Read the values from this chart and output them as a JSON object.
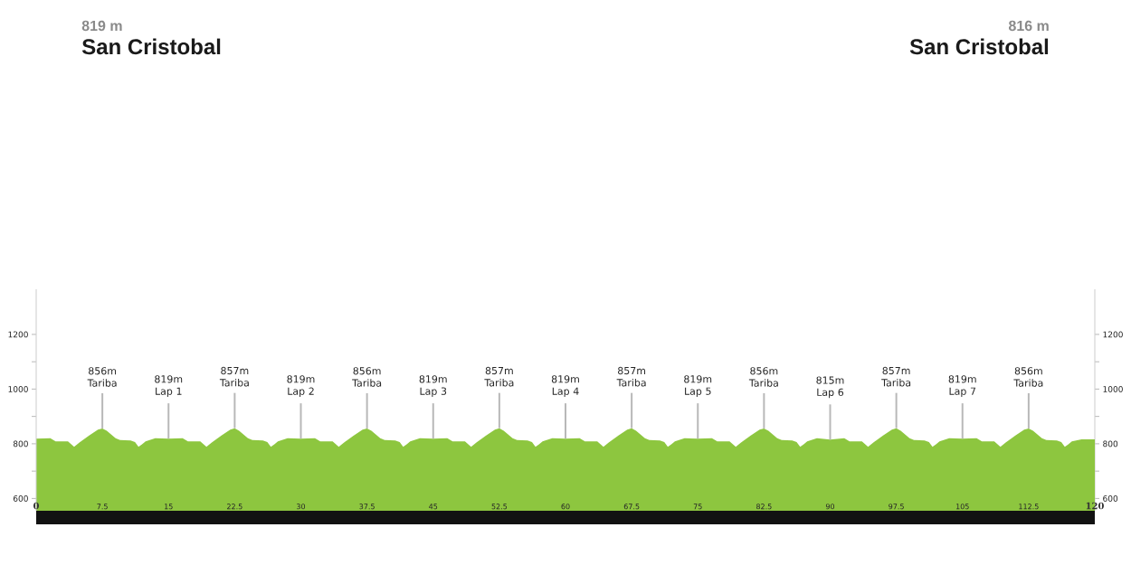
{
  "chart_data": {
    "type": "area",
    "annotations": [
      "819 m",
      "San Cristobal",
      "816 m",
      "San Cristobal",
      {
        "text": "856m Tariba",
        "x": 7.5,
        "y": 856
      },
      {
        "text": "819m Lap 1",
        "x": 15,
        "y": 819
      },
      {
        "text": "857m Tariba",
        "x": 22.5,
        "y": 857
      },
      {
        "text": "819m Lap 2",
        "x": 30,
        "y": 819
      },
      {
        "text": "856m Tariba",
        "x": 37.5,
        "y": 856
      },
      {
        "text": "819m Lap 3",
        "x": 45,
        "y": 819
      },
      {
        "text": "857m Tariba",
        "x": 52.5,
        "y": 857
      },
      {
        "text": "819m Lap 4",
        "x": 60,
        "y": 819
      },
      {
        "text": "857m Tariba",
        "x": 67.5,
        "y": 857
      },
      {
        "text": "819m Lap 5",
        "x": 75,
        "y": 819
      },
      {
        "text": "856m Tariba",
        "x": 82.5,
        "y": 856
      },
      {
        "text": "815m Lap 6",
        "x": 90,
        "y": 815
      },
      {
        "text": "857m Tariba",
        "x": 97.5,
        "y": 857
      },
      {
        "text": "819m Lap 7",
        "x": 105,
        "y": 819
      },
      {
        "text": "856m Tariba",
        "x": 112.5,
        "y": 856
      }
    ],
    "series": [
      {
        "color": "#8dc63f",
        "x": [
          0,
          1.6,
          2.2,
          3.6,
          4.3,
          4.9,
          6,
          7,
          7.5,
          8,
          9,
          9.5,
          10.7,
          11.2,
          11.6,
          12,
          12.4,
          13.5,
          15,
          16.6,
          17.2,
          18.6,
          19.3,
          19.9,
          21,
          22,
          22.5,
          23,
          24,
          24.5,
          25.7,
          26.2,
          26.6,
          27,
          27.4,
          28.5,
          30,
          31.6,
          32.2,
          33.6,
          34.3,
          34.9,
          36,
          37,
          37.5,
          38,
          39,
          39.5,
          40.7,
          41.2,
          41.6,
          42,
          42.4,
          43.5,
          45,
          46.6,
          47.2,
          48.6,
          49.3,
          49.9,
          51,
          52,
          52.5,
          53,
          54,
          54.5,
          55.7,
          56.2,
          56.6,
          57,
          57.4,
          58.5,
          60,
          61.6,
          62.2,
          63.6,
          64.3,
          64.9,
          66,
          67,
          67.5,
          68,
          69,
          69.5,
          70.7,
          71.2,
          71.6,
          72,
          72.4,
          73.5,
          75,
          76.6,
          77.2,
          78.6,
          79.3,
          79.9,
          81,
          82,
          82.5,
          83,
          84,
          84.5,
          85.7,
          86.2,
          86.6,
          87,
          87.4,
          88.5,
          90,
          91.6,
          92.2,
          93.6,
          94.3,
          94.9,
          96,
          97,
          97.5,
          98,
          99,
          99.5,
          100.7,
          101.2,
          101.6,
          102,
          102.4,
          103.5,
          105,
          106.6,
          107.2,
          108.6,
          109.3,
          109.9,
          111,
          112,
          112.5,
          113,
          114,
          114.5,
          115.7,
          116.2,
          116.6,
          117,
          117.4,
          118.5,
          120
        ],
        "values": [
          819,
          820,
          809,
          809,
          789,
          805,
          830,
          852,
          856,
          848,
          820,
          814,
          812,
          806,
          789,
          798,
          809,
          820,
          819,
          820,
          809,
          809,
          789,
          805,
          830,
          852,
          857,
          848,
          820,
          814,
          812,
          806,
          789,
          798,
          809,
          820,
          819,
          820,
          809,
          809,
          789,
          805,
          830,
          852,
          856,
          848,
          820,
          814,
          812,
          806,
          789,
          798,
          809,
          820,
          819,
          820,
          809,
          809,
          789,
          805,
          830,
          852,
          857,
          848,
          820,
          814,
          812,
          806,
          789,
          798,
          809,
          820,
          819,
          820,
          809,
          809,
          789,
          805,
          830,
          852,
          857,
          848,
          820,
          814,
          812,
          806,
          789,
          798,
          809,
          820,
          819,
          820,
          809,
          809,
          789,
          805,
          830,
          852,
          856,
          848,
          820,
          814,
          812,
          806,
          789,
          798,
          809,
          820,
          815,
          820,
          809,
          809,
          789,
          805,
          830,
          852,
          857,
          848,
          820,
          814,
          812,
          806,
          789,
          798,
          809,
          820,
          819,
          820,
          809,
          809,
          789,
          805,
          830,
          852,
          856,
          848,
          820,
          814,
          812,
          806,
          789,
          798,
          809,
          816,
          816
        ]
      }
    ],
    "xlim": [
      0,
      120
    ],
    "xticks": [
      0,
      7.5,
      15,
      22.5,
      30,
      37.5,
      45,
      52.5,
      60,
      67.5,
      75,
      82.5,
      90,
      97.5,
      105,
      112.5,
      120
    ],
    "ylim": [
      555,
      1365
    ],
    "yticks": [
      600,
      {
        "value": 700,
        "label": null
      },
      800,
      {
        "value": 900,
        "label": null
      },
      1000,
      {
        "value": 1100,
        "label": null
      },
      1200
    ],
    "y2lim": [
      555,
      1365
    ],
    "y2ticks": [
      600,
      {
        "value": 700,
        "label": null
      },
      800,
      {
        "value": 900,
        "label": null
      },
      1000,
      {
        "value": 1100,
        "label": null
      },
      1200
    ]
  }
}
